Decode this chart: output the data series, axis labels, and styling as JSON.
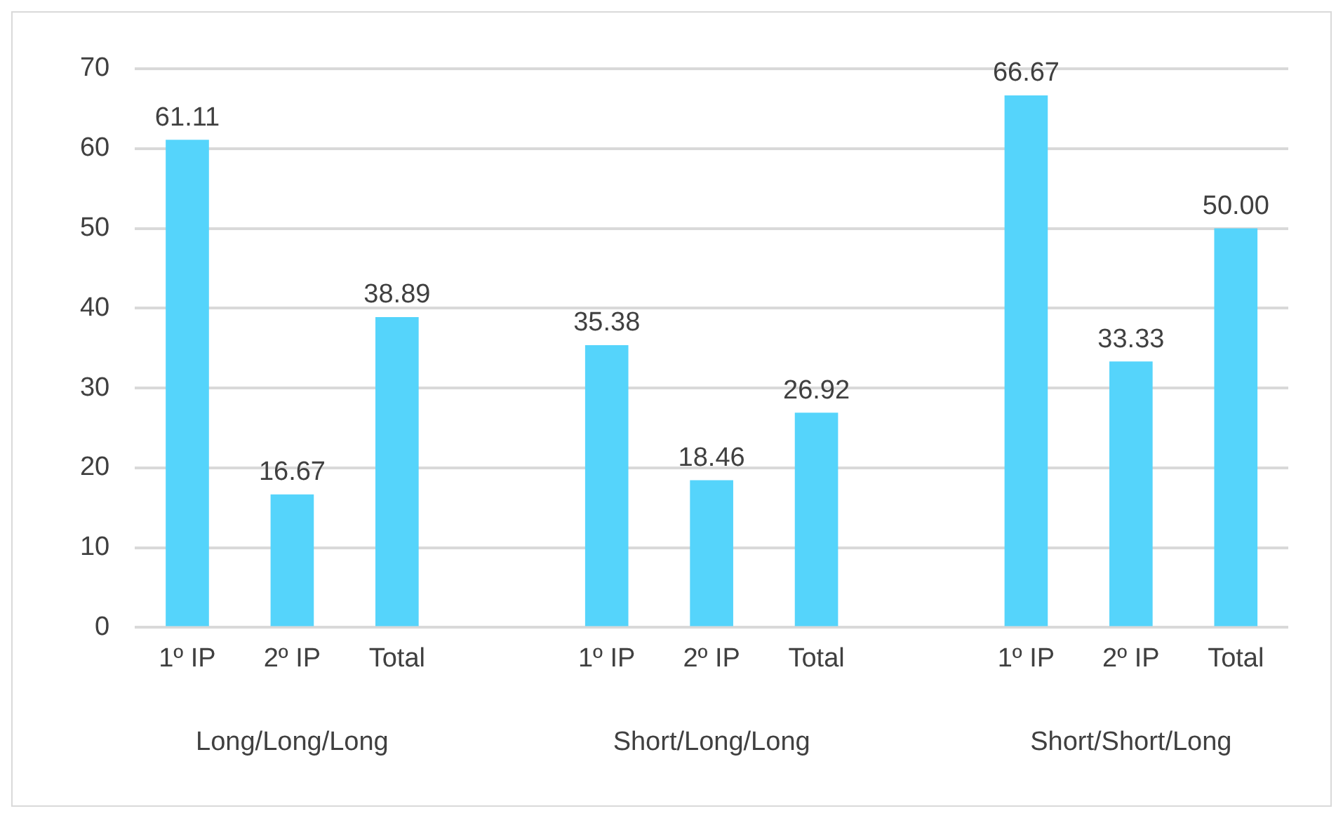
{
  "chart_data": {
    "type": "bar",
    "categories": [
      "1º IP",
      "2º IP",
      "Total",
      null,
      "1º IP",
      "2º IP",
      "Total",
      null,
      "1º IP",
      "2º IP",
      "Total"
    ],
    "values": [
      61.11,
      16.67,
      38.89,
      null,
      35.38,
      18.46,
      26.92,
      null,
      66.67,
      33.33,
      50.0
    ],
    "value_labels": [
      "61.11",
      "16.67",
      "38.89",
      null,
      "35.38",
      "18.46",
      "26.92",
      null,
      "66.67",
      "33.33",
      "50.00"
    ],
    "color": "#55d4fb",
    "ylim": [
      0,
      70
    ],
    "yticks": [
      0,
      10,
      20,
      30,
      40,
      50,
      60,
      70
    ],
    "grid": "y",
    "legend": false,
    "annotations": [
      "Long/Long/Long",
      "Short/Long/Long",
      "Short/Short/Long"
    ]
  }
}
